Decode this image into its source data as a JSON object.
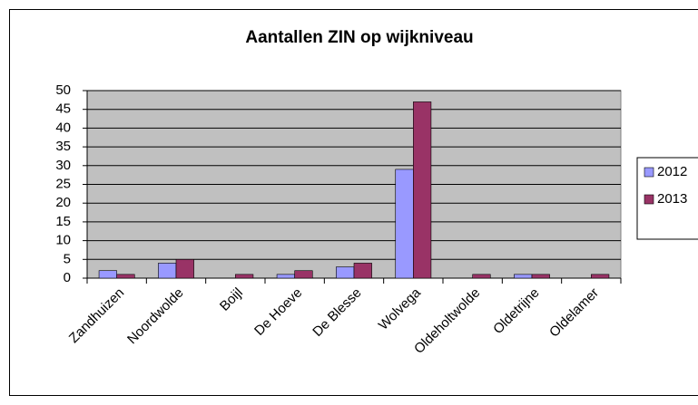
{
  "chart_data": {
    "type": "bar",
    "title": "Aantallen ZIN op wijkniveau",
    "categories": [
      "Zandhuizen",
      "Noordwolde",
      "Boijl",
      "De Hoeve",
      "De Blesse",
      "Wolvega",
      "Oldeholtwolde",
      "Oldetrijne",
      "Oldelamer"
    ],
    "series": [
      {
        "name": "2012",
        "color": "#9999ff",
        "values": [
          2,
          4,
          0,
          1,
          3,
          29,
          0,
          1,
          0
        ]
      },
      {
        "name": "2013",
        "color": "#993366",
        "values": [
          1,
          5,
          1,
          2,
          4,
          47,
          1,
          1,
          1
        ]
      }
    ],
    "ylim": [
      0,
      50
    ],
    "yticks": [
      0,
      5,
      10,
      15,
      20,
      25,
      30,
      35,
      40,
      45,
      50
    ],
    "grid": true,
    "legend": "right"
  }
}
